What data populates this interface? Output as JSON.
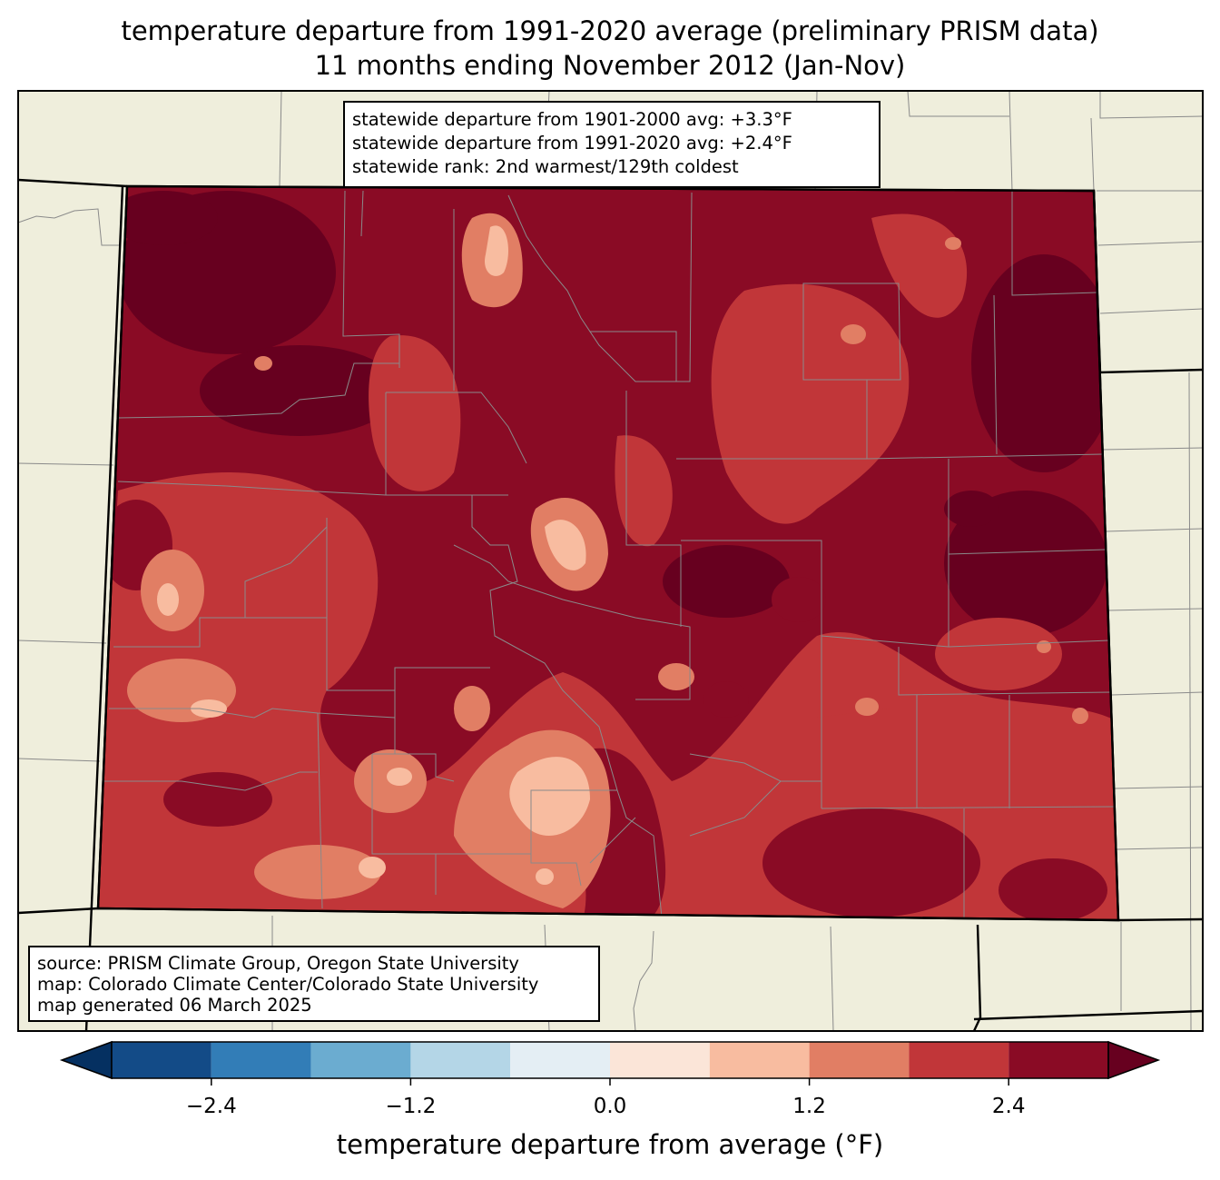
{
  "title": {
    "line1": "temperature departure from 1991-2020 average (preliminary PRISM data)",
    "line2": "11 months ending November 2012 (Jan-Nov)"
  },
  "stats": {
    "line1": "statewide departure from 1901-2000 avg: +3.3°F",
    "line2": "statewide departure from 1991-2020 avg: +2.4°F",
    "line3": "statewide rank: 2nd warmest/129th coldest"
  },
  "source": {
    "line1": "source: PRISM Climate Group, Oregon State University",
    "line2": "map: Colorado Climate Center/Colorado State University",
    "line3": "map generated 06 March 2025"
  },
  "colorbar": {
    "label": "temperature departure from average (°F)",
    "ticks": [
      "−2.4",
      "−1.2",
      "0.0",
      "1.2",
      "2.4"
    ],
    "tick_values": [
      -2.4,
      -1.2,
      0.0,
      1.2,
      2.4
    ],
    "boundaries": [
      -3.0,
      -2.4,
      -1.8,
      -1.2,
      -0.6,
      0.0,
      0.6,
      1.2,
      1.8,
      2.4,
      3.0
    ],
    "colors": [
      "#053061",
      "#134b87",
      "#327db7",
      "#6bacd0",
      "#b4d6e7",
      "#e4eef4",
      "#fbe5d8",
      "#f8bca0",
      "#e17e64",
      "#c13639",
      "#8a0b25",
      "#67001f"
    ]
  },
  "map_colors": {
    "background": "#efeedc",
    "departure_2_4_plus": "#8a0b25",
    "departure_3_0_plus": "#67001f",
    "departure_1_8_2_4": "#c13639",
    "departure_1_2_1_8": "#e17e64",
    "departure_0_6_1_2": "#f8bca0",
    "departure_0_0_0_6": "#fbe5d8"
  }
}
